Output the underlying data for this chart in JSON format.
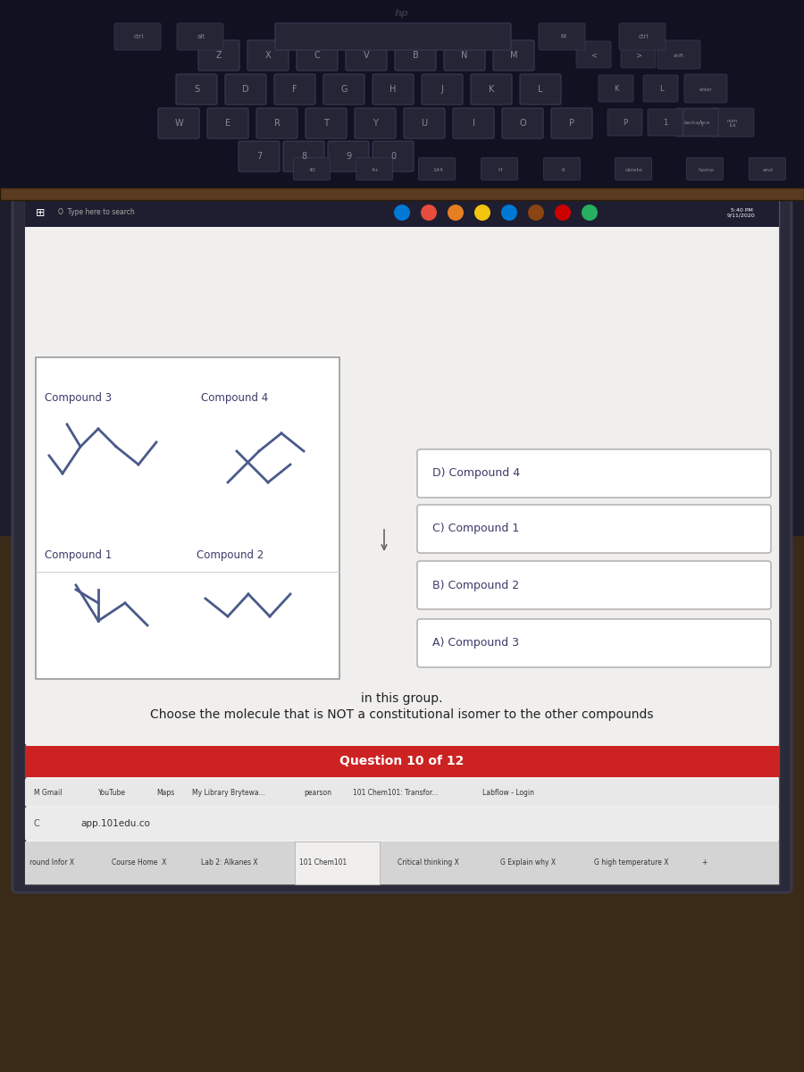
{
  "title": "Question 10 of 12",
  "title_bg": "#cc2222",
  "title_color": "white",
  "question_line1": "Choose the molecule that is NOT a constitutional isomer to the other compounds",
  "question_line2": "in this group.",
  "answers": [
    "A) Compound 3",
    "B) Compound 2",
    "C) Compound 1",
    "D) Compound 4"
  ],
  "compound_labels": [
    "Compound 1",
    "Compound 2",
    "Compound 3",
    "Compound 4"
  ],
  "screen_bg": "#f0efee",
  "tab_bar_bg": "#d4d4d4",
  "active_tab_bg": "#f0efee",
  "browser_chrome_bg": "#e8e8e8",
  "addr_bar_bg": "#e0e0e0",
  "compound_line_color": "#4a5a8a",
  "compound_text_color": "#3a3a6a",
  "answer_text_color": "#3a3a6a",
  "answer_box_border": "#aaaaaa",
  "question_text_color": "#222222",
  "laptop_body_color": "#1c1c2a",
  "hinge_color": "#5a3a20",
  "keyboard_color": "#111122",
  "key_face_color": "#252535",
  "key_border_color": "#3a3a55",
  "key_text_color": "#888899",
  "wood_bg_color": "#3a2a18",
  "taskbar_color": "#1e1e30",
  "taskbar_text_color": "#aaaaaa"
}
